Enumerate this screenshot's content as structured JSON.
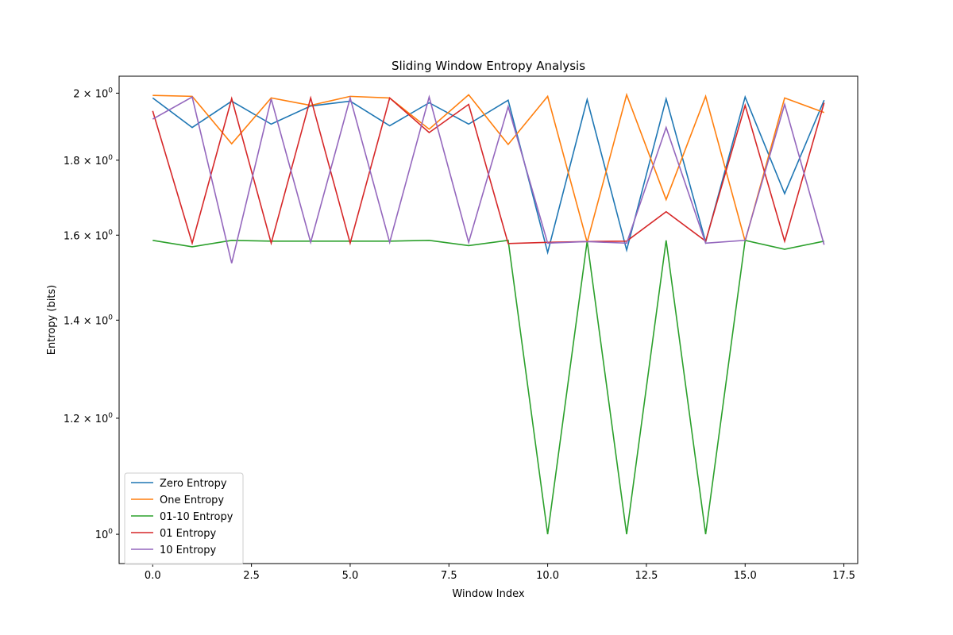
{
  "chart_data": {
    "type": "line",
    "title": "Sliding Window Entropy Analysis",
    "xlabel": "Window Index",
    "ylabel": "Entropy (bits)",
    "yscale": "log",
    "xlim": [
      -0.85,
      17.85
    ],
    "ylim": [
      0.955,
      2.054
    ],
    "xticks": [
      0.0,
      2.5,
      5.0,
      7.5,
      10.0,
      12.5,
      15.0,
      17.5
    ],
    "xtick_labels": [
      "0.0",
      "2.5",
      "5.0",
      "7.5",
      "10.0",
      "12.5",
      "15.0",
      "17.5"
    ],
    "yticks": [
      {
        "value": 2.0,
        "mantissa": "2",
        "times": "×",
        "base": "10",
        "exp": "0"
      },
      {
        "value": 1.8,
        "mantissa": "1.8",
        "times": "×",
        "base": "10",
        "exp": "0"
      },
      {
        "value": 1.6,
        "mantissa": "1.6",
        "times": "×",
        "base": "10",
        "exp": "0"
      },
      {
        "value": 1.4,
        "mantissa": "1.4",
        "times": "×",
        "base": "10",
        "exp": "0"
      },
      {
        "value": 1.2,
        "mantissa": "1.2",
        "times": "×",
        "base": "10",
        "exp": "0"
      },
      {
        "value": 1.0,
        "mantissa": "",
        "times": "",
        "base": "10",
        "exp": "0"
      }
    ],
    "grid": false,
    "legend_position": "lower-left",
    "x": [
      0,
      1,
      2,
      3,
      4,
      5,
      6,
      7,
      8,
      9,
      10,
      11,
      12,
      13,
      14,
      15,
      16,
      17
    ],
    "series": [
      {
        "name": "Zero Entropy",
        "color": "#1f77b4",
        "values": [
          1.985,
          1.895,
          1.975,
          1.905,
          1.96,
          1.975,
          1.9,
          1.97,
          1.905,
          1.978,
          1.557,
          1.98,
          1.563,
          1.982,
          1.583,
          1.988,
          1.708,
          1.978
        ]
      },
      {
        "name": "One Entropy",
        "color": "#ff7f0e",
        "values": [
          1.993,
          1.99,
          1.847,
          1.985,
          1.962,
          1.99,
          1.985,
          1.89,
          1.995,
          1.845,
          1.99,
          1.582,
          1.995,
          1.692,
          1.99,
          1.585,
          1.985,
          1.94
        ]
      },
      {
        "name": "01-10 Entropy",
        "color": "#2ca02c",
        "values": [
          1.587,
          1.571,
          1.587,
          1.585,
          1.585,
          1.585,
          1.585,
          1.587,
          1.574,
          1.587,
          1.0,
          1.585,
          1.0,
          1.587,
          1.0,
          1.587,
          1.565,
          1.585
        ]
      },
      {
        "name": "01 Entropy",
        "color": "#d62728",
        "values": [
          1.945,
          1.58,
          1.983,
          1.58,
          1.985,
          1.58,
          1.985,
          1.88,
          1.965,
          1.579,
          1.582,
          1.584,
          1.585,
          1.66,
          1.585,
          1.962,
          1.585,
          1.97
        ]
      },
      {
        "name": "10 Entropy",
        "color": "#9467bd",
        "values": [
          1.92,
          1.988,
          1.531,
          1.982,
          1.582,
          1.985,
          1.582,
          1.988,
          1.582,
          1.958,
          1.58,
          1.584,
          1.58,
          1.895,
          1.58,
          1.587,
          1.965,
          1.576
        ]
      }
    ]
  }
}
